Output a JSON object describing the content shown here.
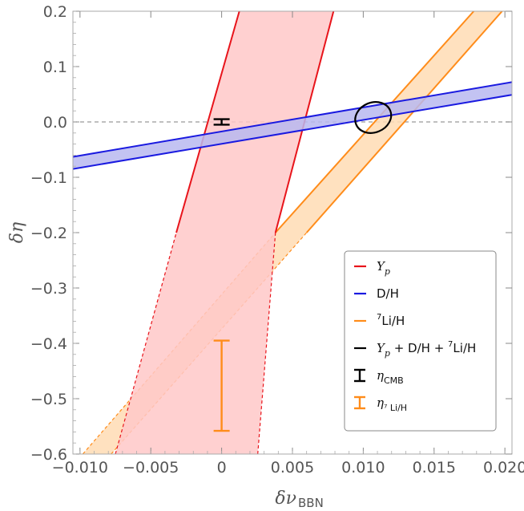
{
  "chart_data": {
    "type": "line",
    "title": "",
    "xlabel": "δν",
    "xlabel_sub": "BBN",
    "ylabel": "δη",
    "xlim": [
      -0.0105,
      0.0205
    ],
    "ylim": [
      -0.6,
      0.2
    ],
    "x_ticks": [
      -0.01,
      -0.005,
      0,
      0.005,
      0.01,
      0.015,
      0.02
    ],
    "x_tick_labels": [
      "−0.010",
      "−0.005",
      "0",
      "0.005",
      "0.010",
      "0.015",
      "0.020"
    ],
    "y_ticks": [
      0.2,
      0.1,
      0.0,
      -0.1,
      -0.2,
      -0.3,
      -0.4,
      -0.5,
      -0.6
    ],
    "y_tick_labels": [
      "0.2",
      "0.1",
      "0.0",
      "−0.1",
      "−0.2",
      "−0.3",
      "−0.4",
      "−0.5",
      "−0.6"
    ],
    "reference_line": {
      "y": 0,
      "style": "dashed",
      "color": "#999999"
    },
    "colors": {
      "Yp": "#e8141b",
      "Yp_fill": "#ffc8c8",
      "DH": "#1a1ae0",
      "DH_fill": "#b8b8f0",
      "Li": "#ff8c1a",
      "Li_fill": "#ffdcb4",
      "combined": "#000000"
    },
    "series": [
      {
        "name": "Y_p",
        "type": "band",
        "line_1": [
          [
            -0.0075,
            -0.6
          ],
          [
            -0.0032,
            -0.2
          ],
          [
            0.00125,
            0.2
          ]
        ],
        "line_2": [
          [
            0.00255,
            -0.6
          ],
          [
            0.0038,
            -0.2
          ],
          [
            0.0079,
            0.2
          ]
        ],
        "dashed_below_y": -0.2
      },
      {
        "name": "D/H",
        "type": "band",
        "line_1": [
          [
            -0.0105,
            -0.063
          ],
          [
            0.0205,
            0.072
          ]
        ],
        "line_2": [
          [
            -0.0105,
            -0.085
          ],
          [
            0.0205,
            0.049
          ]
        ]
      },
      {
        "name": "7Li/H",
        "type": "band",
        "line_1": [
          [
            -0.0098,
            -0.6
          ],
          [
            0.0038,
            -0.2
          ],
          [
            0.0178,
            0.2
          ]
        ],
        "line_2": [
          [
            -0.0078,
            -0.6
          ],
          [
            0.006,
            -0.2
          ],
          [
            0.0198,
            0.2
          ]
        ],
        "dashed_below_y": -0.2
      },
      {
        "name": "Y_p + D/H + 7Li/H",
        "type": "ellipse",
        "center": [
          0.0107,
          0.008
        ],
        "semi_x": 0.0013,
        "semi_y": 0.027,
        "rotation_deg": 0
      },
      {
        "name": "η_CMB",
        "type": "errorbar",
        "x": 0,
        "y_low": -0.005,
        "y_high": 0.005
      },
      {
        "name": "η_7Li/H",
        "type": "errorbar",
        "x": 0,
        "y_low": -0.558,
        "y_high": -0.395
      }
    ],
    "legend": {
      "position": "bottom-right",
      "entries": [
        {
          "key": "Y_p",
          "main": "Y",
          "sub": "p",
          "kind": "line",
          "color": "#e8141b"
        },
        {
          "key": "D/H",
          "main": "D/H",
          "kind": "line",
          "color": "#1a1ae0"
        },
        {
          "key": "7Li/H",
          "sup": "7",
          "main": "Li/H",
          "kind": "line",
          "color": "#ff8c1a"
        },
        {
          "key": "combined",
          "main": "Y",
          "sub": "p",
          "rest": " + D/H + ",
          "sup2": "7",
          "rest2": "Li/H",
          "kind": "line",
          "color": "#000000"
        },
        {
          "key": "eta_cmb",
          "main": "η",
          "sub": "CMB",
          "kind": "errorbar",
          "color": "#000000"
        },
        {
          "key": "eta_li",
          "main": "η",
          "sub": "⁷ Li/H",
          "kind": "errorbar",
          "color": "#ff8c1a"
        }
      ]
    }
  }
}
